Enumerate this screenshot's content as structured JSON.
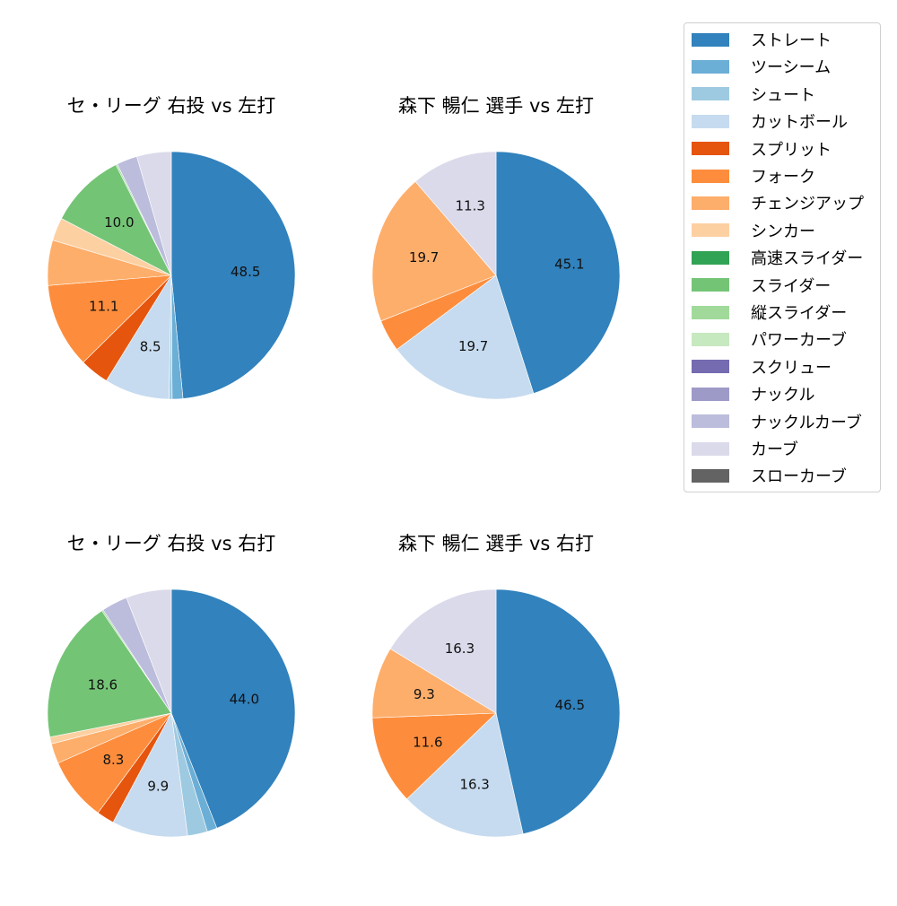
{
  "legend": {
    "items": [
      {
        "label": "ストレート",
        "color": "#3182bd"
      },
      {
        "label": "ツーシーム",
        "color": "#6baed6"
      },
      {
        "label": "シュート",
        "color": "#9ecae1"
      },
      {
        "label": "カットボール",
        "color": "#c6dbef"
      },
      {
        "label": "スプリット",
        "color": "#e6550d"
      },
      {
        "label": "フォーク",
        "color": "#fd8d3c"
      },
      {
        "label": "チェンジアップ",
        "color": "#fdae6b"
      },
      {
        "label": "シンカー",
        "color": "#fdd0a2"
      },
      {
        "label": "高速スライダー",
        "color": "#31a354"
      },
      {
        "label": "スライダー",
        "color": "#74c476"
      },
      {
        "label": "縦スライダー",
        "color": "#a1d99b"
      },
      {
        "label": "パワーカーブ",
        "color": "#c7e9c0"
      },
      {
        "label": "スクリュー",
        "color": "#756bb1"
      },
      {
        "label": "ナックル",
        "color": "#9e9ac8"
      },
      {
        "label": "ナックルカーブ",
        "color": "#bcbddc"
      },
      {
        "label": "カーブ",
        "color": "#dadaeb"
      },
      {
        "label": "スローカーブ",
        "color": "#636363"
      }
    ]
  },
  "chart_data": [
    {
      "type": "pie",
      "title": "セ・リーグ 右投 vs 左打",
      "start_angle": 90,
      "direction": "clockwise",
      "slices": [
        {
          "name": "ストレート",
          "value": 48.5,
          "label": "48.5"
        },
        {
          "name": "ツーシーム",
          "value": 1.4,
          "label": ""
        },
        {
          "name": "シュート",
          "value": 0.4,
          "label": ""
        },
        {
          "name": "カットボール",
          "value": 8.5,
          "label": "8.5"
        },
        {
          "name": "スプリット",
          "value": 3.8,
          "label": ""
        },
        {
          "name": "フォーク",
          "value": 11.1,
          "label": "11.1"
        },
        {
          "name": "チェンジアップ",
          "value": 5.9,
          "label": ""
        },
        {
          "name": "シンカー",
          "value": 3.0,
          "label": ""
        },
        {
          "name": "スライダー",
          "value": 10.0,
          "label": "10.0"
        },
        {
          "name": "縦スライダー",
          "value": 0.2,
          "label": ""
        },
        {
          "name": "ナックルカーブ",
          "value": 2.7,
          "label": ""
        },
        {
          "name": "カーブ",
          "value": 4.5,
          "label": ""
        }
      ]
    },
    {
      "type": "pie",
      "title": "森下 暢仁 選手 vs 左打",
      "start_angle": 90,
      "direction": "clockwise",
      "slices": [
        {
          "name": "ストレート",
          "value": 45.1,
          "label": "45.1"
        },
        {
          "name": "カットボール",
          "value": 19.7,
          "label": "19.7"
        },
        {
          "name": "フォーク",
          "value": 4.2,
          "label": ""
        },
        {
          "name": "チェンジアップ",
          "value": 19.7,
          "label": "19.7"
        },
        {
          "name": "カーブ",
          "value": 11.3,
          "label": "11.3"
        }
      ]
    },
    {
      "type": "pie",
      "title": "セ・リーグ 右投 vs 右打",
      "start_angle": 90,
      "direction": "clockwise",
      "slices": [
        {
          "name": "ストレート",
          "value": 44.0,
          "label": "44.0"
        },
        {
          "name": "ツーシーム",
          "value": 1.3,
          "label": ""
        },
        {
          "name": "シュート",
          "value": 2.6,
          "label": ""
        },
        {
          "name": "カットボール",
          "value": 9.9,
          "label": "9.9"
        },
        {
          "name": "スプリット",
          "value": 2.3,
          "label": ""
        },
        {
          "name": "フォーク",
          "value": 8.3,
          "label": "8.3"
        },
        {
          "name": "チェンジアップ",
          "value": 2.6,
          "label": ""
        },
        {
          "name": "シンカー",
          "value": 0.9,
          "label": ""
        },
        {
          "name": "スライダー",
          "value": 18.6,
          "label": "18.6"
        },
        {
          "name": "縦スライダー",
          "value": 0.2,
          "label": ""
        },
        {
          "name": "ナックルカーブ",
          "value": 3.4,
          "label": ""
        },
        {
          "name": "カーブ",
          "value": 5.9,
          "label": ""
        }
      ]
    },
    {
      "type": "pie",
      "title": "森下 暢仁 選手 vs 右打",
      "start_angle": 90,
      "direction": "clockwise",
      "slices": [
        {
          "name": "ストレート",
          "value": 46.5,
          "label": "46.5"
        },
        {
          "name": "カットボール",
          "value": 16.3,
          "label": "16.3"
        },
        {
          "name": "フォーク",
          "value": 11.6,
          "label": "11.6"
        },
        {
          "name": "チェンジアップ",
          "value": 9.3,
          "label": "9.3"
        },
        {
          "name": "カーブ",
          "value": 16.3,
          "label": "16.3"
        }
      ]
    }
  ]
}
